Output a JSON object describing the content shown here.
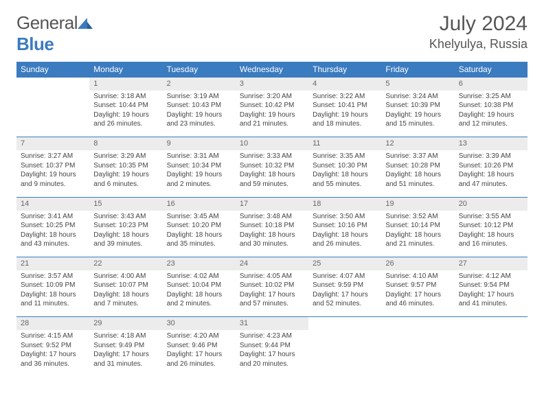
{
  "logo": {
    "text1": "General",
    "text2": "Blue"
  },
  "title": "July 2024",
  "location": "Khelyulya, Russia",
  "colors": {
    "header_bg": "#3b7bbf",
    "header_text": "#ffffff",
    "daynum_bg": "#ececec",
    "border": "#3b7bbf",
    "body_text": "#444444"
  },
  "weekdays": [
    "Sunday",
    "Monday",
    "Tuesday",
    "Wednesday",
    "Thursday",
    "Friday",
    "Saturday"
  ],
  "weeks": [
    [
      null,
      {
        "n": "1",
        "sr": "Sunrise: 3:18 AM",
        "ss": "Sunset: 10:44 PM",
        "d1": "Daylight: 19 hours",
        "d2": "and 26 minutes."
      },
      {
        "n": "2",
        "sr": "Sunrise: 3:19 AM",
        "ss": "Sunset: 10:43 PM",
        "d1": "Daylight: 19 hours",
        "d2": "and 23 minutes."
      },
      {
        "n": "3",
        "sr": "Sunrise: 3:20 AM",
        "ss": "Sunset: 10:42 PM",
        "d1": "Daylight: 19 hours",
        "d2": "and 21 minutes."
      },
      {
        "n": "4",
        "sr": "Sunrise: 3:22 AM",
        "ss": "Sunset: 10:41 PM",
        "d1": "Daylight: 19 hours",
        "d2": "and 18 minutes."
      },
      {
        "n": "5",
        "sr": "Sunrise: 3:24 AM",
        "ss": "Sunset: 10:39 PM",
        "d1": "Daylight: 19 hours",
        "d2": "and 15 minutes."
      },
      {
        "n": "6",
        "sr": "Sunrise: 3:25 AM",
        "ss": "Sunset: 10:38 PM",
        "d1": "Daylight: 19 hours",
        "d2": "and 12 minutes."
      }
    ],
    [
      {
        "n": "7",
        "sr": "Sunrise: 3:27 AM",
        "ss": "Sunset: 10:37 PM",
        "d1": "Daylight: 19 hours",
        "d2": "and 9 minutes."
      },
      {
        "n": "8",
        "sr": "Sunrise: 3:29 AM",
        "ss": "Sunset: 10:35 PM",
        "d1": "Daylight: 19 hours",
        "d2": "and 6 minutes."
      },
      {
        "n": "9",
        "sr": "Sunrise: 3:31 AM",
        "ss": "Sunset: 10:34 PM",
        "d1": "Daylight: 19 hours",
        "d2": "and 2 minutes."
      },
      {
        "n": "10",
        "sr": "Sunrise: 3:33 AM",
        "ss": "Sunset: 10:32 PM",
        "d1": "Daylight: 18 hours",
        "d2": "and 59 minutes."
      },
      {
        "n": "11",
        "sr": "Sunrise: 3:35 AM",
        "ss": "Sunset: 10:30 PM",
        "d1": "Daylight: 18 hours",
        "d2": "and 55 minutes."
      },
      {
        "n": "12",
        "sr": "Sunrise: 3:37 AM",
        "ss": "Sunset: 10:28 PM",
        "d1": "Daylight: 18 hours",
        "d2": "and 51 minutes."
      },
      {
        "n": "13",
        "sr": "Sunrise: 3:39 AM",
        "ss": "Sunset: 10:26 PM",
        "d1": "Daylight: 18 hours",
        "d2": "and 47 minutes."
      }
    ],
    [
      {
        "n": "14",
        "sr": "Sunrise: 3:41 AM",
        "ss": "Sunset: 10:25 PM",
        "d1": "Daylight: 18 hours",
        "d2": "and 43 minutes."
      },
      {
        "n": "15",
        "sr": "Sunrise: 3:43 AM",
        "ss": "Sunset: 10:23 PM",
        "d1": "Daylight: 18 hours",
        "d2": "and 39 minutes."
      },
      {
        "n": "16",
        "sr": "Sunrise: 3:45 AM",
        "ss": "Sunset: 10:20 PM",
        "d1": "Daylight: 18 hours",
        "d2": "and 35 minutes."
      },
      {
        "n": "17",
        "sr": "Sunrise: 3:48 AM",
        "ss": "Sunset: 10:18 PM",
        "d1": "Daylight: 18 hours",
        "d2": "and 30 minutes."
      },
      {
        "n": "18",
        "sr": "Sunrise: 3:50 AM",
        "ss": "Sunset: 10:16 PM",
        "d1": "Daylight: 18 hours",
        "d2": "and 26 minutes."
      },
      {
        "n": "19",
        "sr": "Sunrise: 3:52 AM",
        "ss": "Sunset: 10:14 PM",
        "d1": "Daylight: 18 hours",
        "d2": "and 21 minutes."
      },
      {
        "n": "20",
        "sr": "Sunrise: 3:55 AM",
        "ss": "Sunset: 10:12 PM",
        "d1": "Daylight: 18 hours",
        "d2": "and 16 minutes."
      }
    ],
    [
      {
        "n": "21",
        "sr": "Sunrise: 3:57 AM",
        "ss": "Sunset: 10:09 PM",
        "d1": "Daylight: 18 hours",
        "d2": "and 11 minutes."
      },
      {
        "n": "22",
        "sr": "Sunrise: 4:00 AM",
        "ss": "Sunset: 10:07 PM",
        "d1": "Daylight: 18 hours",
        "d2": "and 7 minutes."
      },
      {
        "n": "23",
        "sr": "Sunrise: 4:02 AM",
        "ss": "Sunset: 10:04 PM",
        "d1": "Daylight: 18 hours",
        "d2": "and 2 minutes."
      },
      {
        "n": "24",
        "sr": "Sunrise: 4:05 AM",
        "ss": "Sunset: 10:02 PM",
        "d1": "Daylight: 17 hours",
        "d2": "and 57 minutes."
      },
      {
        "n": "25",
        "sr": "Sunrise: 4:07 AM",
        "ss": "Sunset: 9:59 PM",
        "d1": "Daylight: 17 hours",
        "d2": "and 52 minutes."
      },
      {
        "n": "26",
        "sr": "Sunrise: 4:10 AM",
        "ss": "Sunset: 9:57 PM",
        "d1": "Daylight: 17 hours",
        "d2": "and 46 minutes."
      },
      {
        "n": "27",
        "sr": "Sunrise: 4:12 AM",
        "ss": "Sunset: 9:54 PM",
        "d1": "Daylight: 17 hours",
        "d2": "and 41 minutes."
      }
    ],
    [
      {
        "n": "28",
        "sr": "Sunrise: 4:15 AM",
        "ss": "Sunset: 9:52 PM",
        "d1": "Daylight: 17 hours",
        "d2": "and 36 minutes."
      },
      {
        "n": "29",
        "sr": "Sunrise: 4:18 AM",
        "ss": "Sunset: 9:49 PM",
        "d1": "Daylight: 17 hours",
        "d2": "and 31 minutes."
      },
      {
        "n": "30",
        "sr": "Sunrise: 4:20 AM",
        "ss": "Sunset: 9:46 PM",
        "d1": "Daylight: 17 hours",
        "d2": "and 26 minutes."
      },
      {
        "n": "31",
        "sr": "Sunrise: 4:23 AM",
        "ss": "Sunset: 9:44 PM",
        "d1": "Daylight: 17 hours",
        "d2": "and 20 minutes."
      },
      null,
      null,
      null
    ]
  ]
}
